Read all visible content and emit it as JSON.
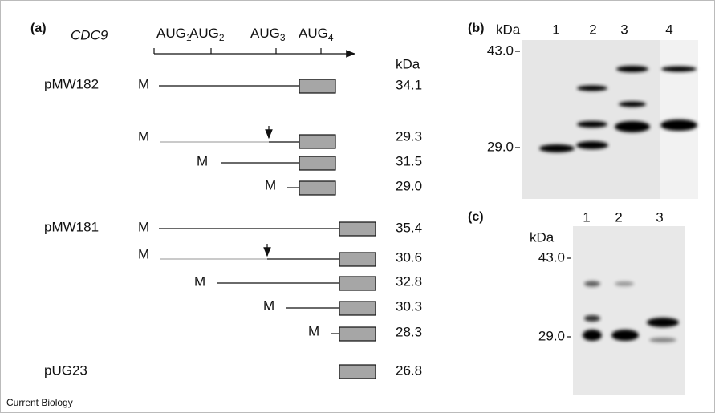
{
  "panel_a": {
    "label": "(a)",
    "gene": "CDC9",
    "start_codons": [
      {
        "text": "AUG",
        "sub": "1"
      },
      {
        "text": "AUG",
        "sub": "2"
      },
      {
        "text": "AUG",
        "sub": "3"
      },
      {
        "text": "AUG",
        "sub": "4"
      }
    ],
    "unit": "kDa",
    "constructs": [
      {
        "name": "pMW182",
        "rows": [
          {
            "marker": "M",
            "size": "34.1"
          },
          {
            "marker": "M",
            "size": "29.3"
          },
          {
            "marker": "M",
            "size": "31.5"
          },
          {
            "marker": "M",
            "size": "29.0"
          }
        ]
      },
      {
        "name": "pMW181",
        "rows": [
          {
            "marker": "M",
            "size": "35.4"
          },
          {
            "marker": "M",
            "size": "30.6"
          },
          {
            "marker": "M",
            "size": "32.8"
          },
          {
            "marker": "M",
            "size": "30.3"
          },
          {
            "marker": "M",
            "size": "28.3"
          }
        ]
      },
      {
        "name": "pUG23",
        "rows": [
          {
            "size": "26.8"
          }
        ]
      }
    ]
  },
  "panel_b": {
    "label": "(b)",
    "unit": "kDa",
    "lanes": [
      "1",
      "2",
      "3",
      "4"
    ],
    "markers": [
      "43.0",
      "29.0"
    ]
  },
  "panel_c": {
    "label": "(c)",
    "unit": "kDa",
    "lanes": [
      "1",
      "2",
      "3"
    ],
    "markers": [
      "43.0",
      "29.0"
    ]
  },
  "footer": "Current Biology"
}
